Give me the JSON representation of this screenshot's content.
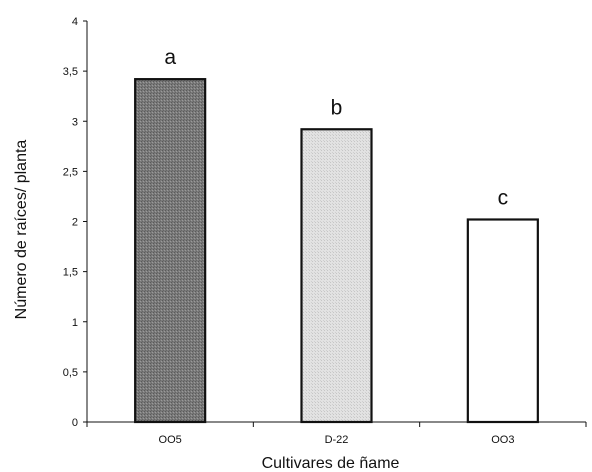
{
  "chart_data": {
    "type": "bar",
    "categories": [
      "OO5",
      "D-22",
      "OO3"
    ],
    "values": [
      3.42,
      2.92,
      2.02
    ],
    "annotations": [
      "a",
      "b",
      "c"
    ],
    "bar_fills": [
      "#8c8c8c",
      "#dedede",
      "#ffffff"
    ],
    "xlabel": "Cultivares de ñame",
    "ylabel": "Número de raíces/ planta",
    "ylim": [
      0,
      4
    ],
    "yticks": [
      "0",
      "0,5",
      "1",
      "1,5",
      "2",
      "2,5",
      "3",
      "3,5",
      "4"
    ],
    "grid": false,
    "legend": "none"
  }
}
